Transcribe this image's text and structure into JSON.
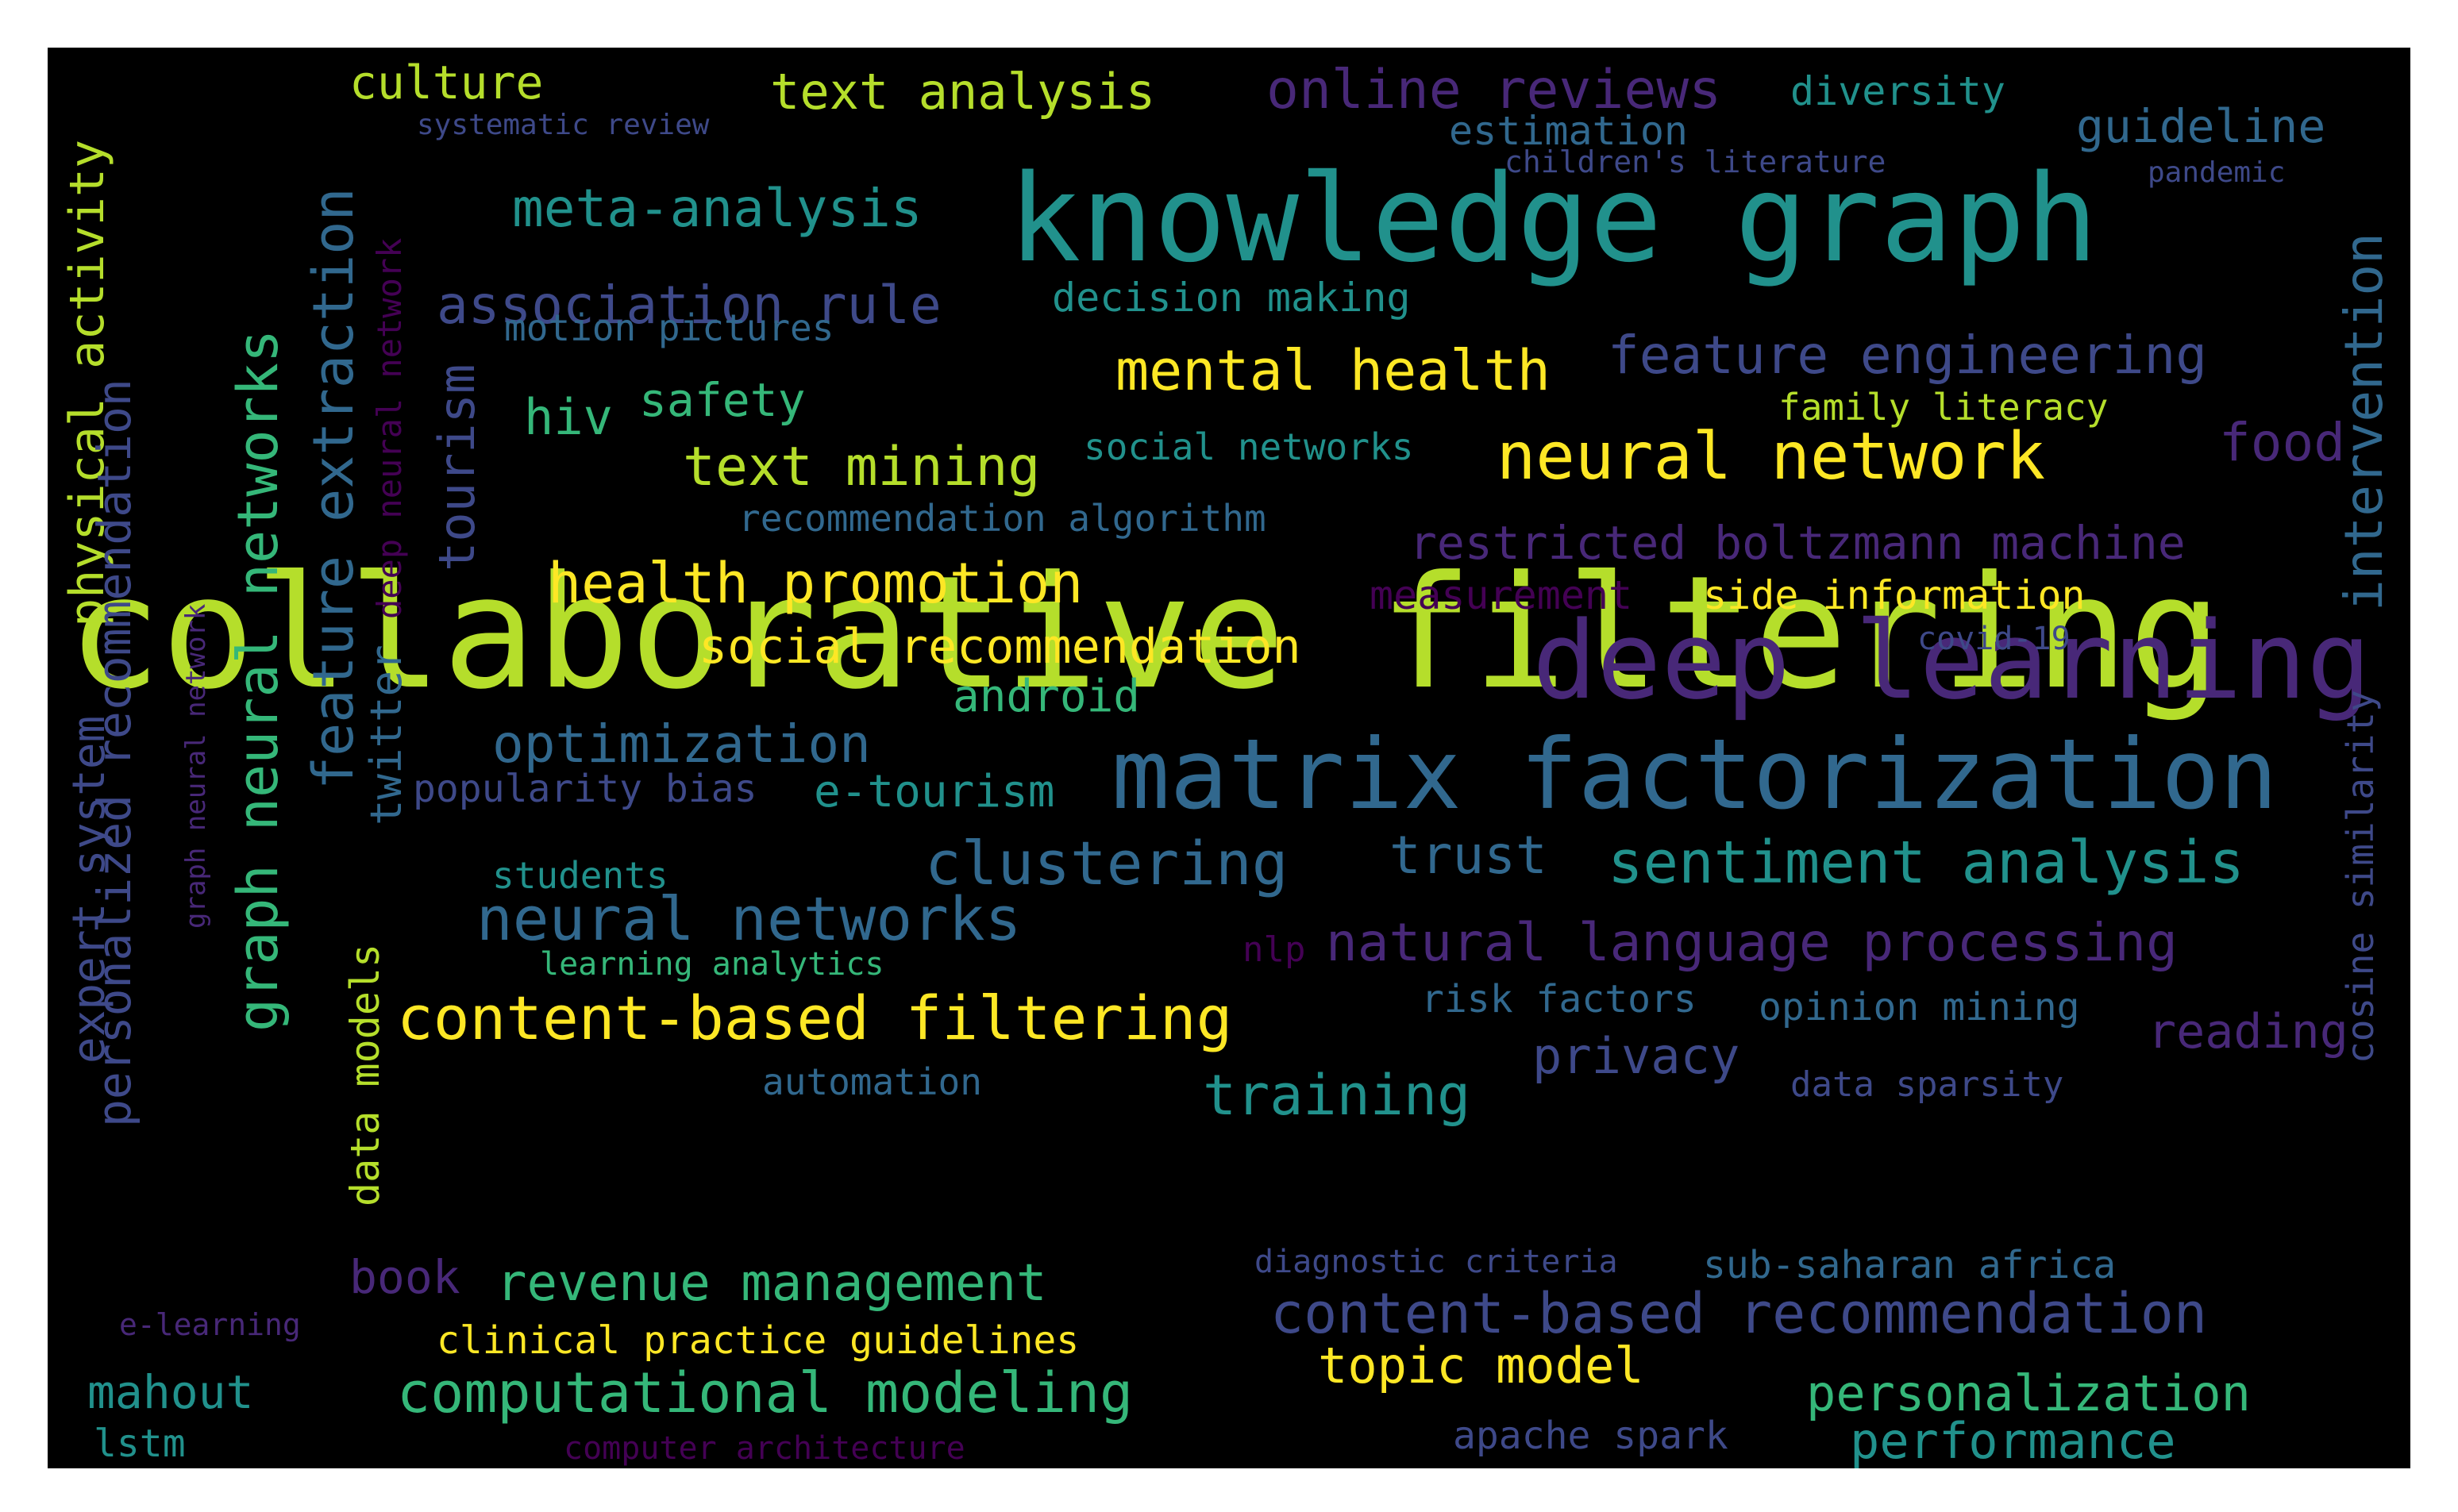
{
  "palette": {
    "background": "#000000",
    "frame": "#ffffff",
    "lime": "#b5de2b",
    "yellow": "#fde725",
    "teal": "#21918c",
    "green": "#35b779",
    "blue": "#31688e",
    "indigo": "#3e4989",
    "violet": "#482878",
    "purple": "#440154"
  },
  "words": [
    "collaborative filtering",
    "knowledge graph",
    "deep learning",
    "matrix factorization",
    "neural network",
    "content-based filtering",
    "mental health",
    "health promotion",
    "text mining",
    "sentiment analysis",
    "clustering",
    "neural networks",
    "natural language processing",
    "content-based recommendation",
    "computational modeling",
    "revenue management",
    "association rule",
    "meta-analysis",
    "online reviews",
    "feature engineering",
    "text analysis",
    "social recommendation",
    "optimization",
    "restricted boltzmann machine",
    "personalization",
    "performance",
    "topic model",
    "training",
    "trust",
    "privacy",
    "culture",
    "guideline",
    "food",
    "reading",
    "mahout",
    "lstm",
    "book",
    "android",
    "e-tourism",
    "hiv",
    "safety",
    "measurement",
    "side information",
    "estimation",
    "diversity",
    "decision making",
    "motion pictures",
    "family literacy",
    "social networks",
    "recommendation algorithm",
    "popularity bias",
    "students",
    "learning analytics",
    "nlp",
    "risk factors",
    "opinion mining",
    "automation",
    "data sparsity",
    "diagnostic criteria",
    "sub-saharan africa",
    "clinical practice guidelines",
    "apache spark",
    "computer architecture",
    "e-learning",
    "systematic review",
    "children's literature",
    "pandemic",
    "covid-19",
    "physical activity",
    "personalized recommendation",
    "graph neural networks",
    "feature extraction",
    "twitter",
    "deep neural network",
    "tourism",
    "expert system",
    "graph neural network",
    "data models",
    "intervention",
    "cosine similarity"
  ]
}
